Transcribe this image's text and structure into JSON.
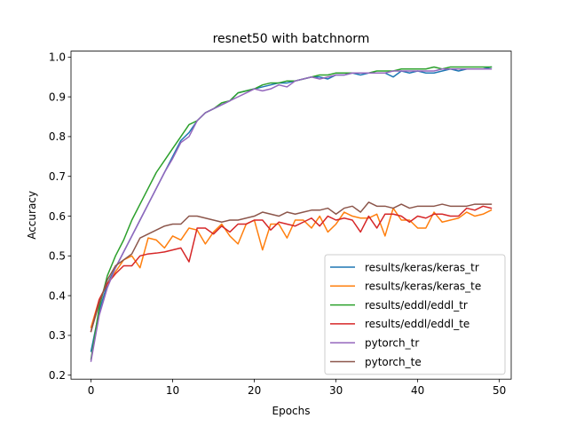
{
  "chart_data": {
    "type": "line",
    "title": "resnet50 with batchnorm",
    "xlabel": "Epochs",
    "ylabel": "Accuracy",
    "xlim": [
      -2.45,
      51.45
    ],
    "ylim": [
      0.19,
      1.015
    ],
    "xticks": [
      0,
      10,
      20,
      30,
      40,
      50
    ],
    "yticks": [
      0.2,
      0.3,
      0.4,
      0.5,
      0.6,
      0.7,
      0.8,
      0.9,
      1.0
    ],
    "ytick_labels": [
      "0.2",
      "0.3",
      "0.4",
      "0.5",
      "0.6",
      "0.7",
      "0.8",
      "0.9",
      "1.0"
    ],
    "grid": false,
    "legend_position": "lower-right",
    "x": [
      0,
      1,
      2,
      3,
      4,
      5,
      6,
      7,
      8,
      9,
      10,
      11,
      12,
      13,
      14,
      15,
      16,
      17,
      18,
      19,
      20,
      21,
      22,
      23,
      24,
      25,
      26,
      27,
      28,
      29,
      30,
      31,
      32,
      33,
      34,
      35,
      36,
      37,
      38,
      39,
      40,
      41,
      42,
      43,
      44,
      45,
      46,
      47,
      48,
      49
    ],
    "series": [
      {
        "name": "results/keras/keras_tr",
        "color": "#1f77b4",
        "values": [
          0.26,
          0.36,
          0.43,
          0.47,
          0.51,
          0.55,
          0.59,
          0.63,
          0.67,
          0.71,
          0.75,
          0.79,
          0.81,
          0.84,
          0.86,
          0.87,
          0.88,
          0.89,
          0.91,
          0.915,
          0.92,
          0.925,
          0.93,
          0.935,
          0.935,
          0.94,
          0.945,
          0.95,
          0.95,
          0.945,
          0.955,
          0.955,
          0.96,
          0.955,
          0.96,
          0.96,
          0.96,
          0.95,
          0.965,
          0.96,
          0.965,
          0.96,
          0.96,
          0.965,
          0.97,
          0.965,
          0.97,
          0.97,
          0.97,
          0.975
        ]
      },
      {
        "name": "results/keras/keras_te",
        "color": "#ff7f0e",
        "values": [
          0.32,
          0.39,
          0.43,
          0.46,
          0.49,
          0.5,
          0.47,
          0.545,
          0.54,
          0.52,
          0.55,
          0.54,
          0.57,
          0.565,
          0.53,
          0.56,
          0.58,
          0.55,
          0.53,
          0.58,
          0.59,
          0.515,
          0.58,
          0.58,
          0.545,
          0.59,
          0.59,
          0.57,
          0.6,
          0.56,
          0.58,
          0.61,
          0.6,
          0.595,
          0.595,
          0.605,
          0.55,
          0.62,
          0.59,
          0.59,
          0.57,
          0.57,
          0.61,
          0.585,
          0.59,
          0.595,
          0.61,
          0.6,
          0.605,
          0.615
        ]
      },
      {
        "name": "results/eddl/eddl_tr",
        "color": "#2ca02c",
        "values": [
          0.24,
          0.37,
          0.45,
          0.5,
          0.54,
          0.59,
          0.63,
          0.67,
          0.71,
          0.74,
          0.77,
          0.8,
          0.83,
          0.84,
          0.86,
          0.87,
          0.885,
          0.89,
          0.91,
          0.915,
          0.92,
          0.93,
          0.935,
          0.935,
          0.94,
          0.94,
          0.945,
          0.95,
          0.955,
          0.955,
          0.96,
          0.96,
          0.96,
          0.96,
          0.96,
          0.965,
          0.965,
          0.965,
          0.97,
          0.97,
          0.97,
          0.97,
          0.975,
          0.97,
          0.975,
          0.975,
          0.975,
          0.975,
          0.975,
          0.975
        ]
      },
      {
        "name": "results/eddl/eddl_te",
        "color": "#d62728",
        "values": [
          0.31,
          0.39,
          0.43,
          0.455,
          0.475,
          0.475,
          0.5,
          0.505,
          0.507,
          0.51,
          0.515,
          0.52,
          0.485,
          0.57,
          0.57,
          0.555,
          0.575,
          0.56,
          0.58,
          0.58,
          0.59,
          0.59,
          0.565,
          0.585,
          0.58,
          0.575,
          0.585,
          0.595,
          0.575,
          0.6,
          0.59,
          0.595,
          0.59,
          0.56,
          0.6,
          0.57,
          0.605,
          0.605,
          0.6,
          0.585,
          0.6,
          0.595,
          0.605,
          0.605,
          0.6,
          0.6,
          0.62,
          0.615,
          0.625,
          0.62
        ]
      },
      {
        "name": "pytorch_tr",
        "color": "#9467bd",
        "values": [
          0.235,
          0.35,
          0.42,
          0.47,
          0.51,
          0.55,
          0.59,
          0.63,
          0.67,
          0.71,
          0.745,
          0.785,
          0.8,
          0.84,
          0.86,
          0.87,
          0.88,
          0.89,
          0.9,
          0.91,
          0.92,
          0.915,
          0.92,
          0.93,
          0.925,
          0.94,
          0.945,
          0.95,
          0.945,
          0.95,
          0.955,
          0.955,
          0.96,
          0.96,
          0.96,
          0.96,
          0.96,
          0.965,
          0.965,
          0.965,
          0.965,
          0.965,
          0.965,
          0.97,
          0.97,
          0.97,
          0.97,
          0.97,
          0.97,
          0.97
        ]
      },
      {
        "name": "pytorch_te",
        "color": "#8c564b",
        "values": [
          0.31,
          0.38,
          0.44,
          0.475,
          0.49,
          0.505,
          0.545,
          0.555,
          0.565,
          0.575,
          0.58,
          0.58,
          0.6,
          0.6,
          0.595,
          0.59,
          0.585,
          0.59,
          0.59,
          0.595,
          0.6,
          0.61,
          0.605,
          0.6,
          0.61,
          0.605,
          0.61,
          0.615,
          0.615,
          0.62,
          0.605,
          0.62,
          0.625,
          0.61,
          0.635,
          0.625,
          0.625,
          0.62,
          0.63,
          0.62,
          0.625,
          0.625,
          0.625,
          0.63,
          0.625,
          0.625,
          0.625,
          0.63,
          0.63,
          0.63
        ]
      }
    ]
  }
}
